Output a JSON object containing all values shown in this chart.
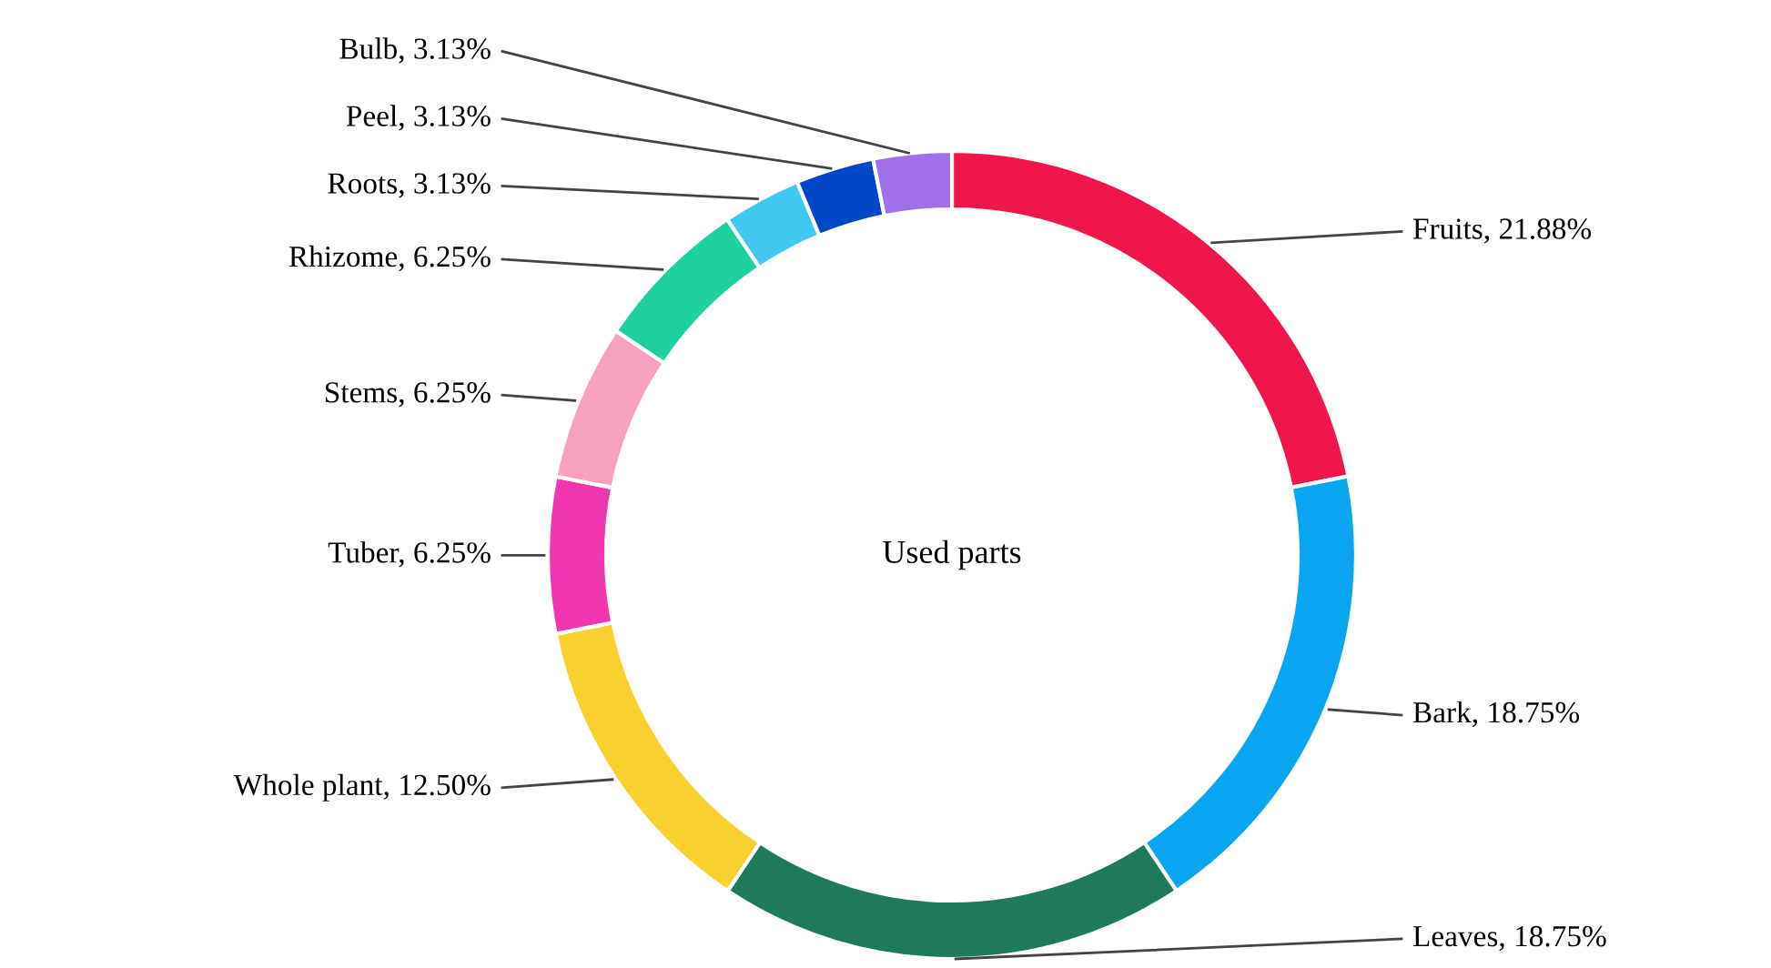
{
  "chart_data": {
    "type": "donut",
    "title": "Used parts",
    "categories": [
      "Fruits",
      "Bark",
      "Leaves",
      "Whole plant",
      "Tuber",
      "Stems",
      "Rhizome",
      "Roots",
      "Peel",
      "Bulb"
    ],
    "values": [
      21.88,
      18.75,
      18.75,
      12.5,
      6.25,
      6.25,
      6.25,
      3.13,
      3.13,
      3.13
    ],
    "value_labels": [
      "21.88%",
      "18.75%",
      "18.75%",
      "12.50%",
      "6.25%",
      "6.25%",
      "6.25%",
      "3.13%",
      "3.13%",
      "3.13%"
    ],
    "colors": [
      "#f0154a",
      "#0aa5f0",
      "#1f7a5c",
      "#f8d030",
      "#f037b0",
      "#f8a0c0",
      "#20d0a0",
      "#40c8f0",
      "#0048c8",
      "#a070e8"
    ],
    "legend": false
  }
}
